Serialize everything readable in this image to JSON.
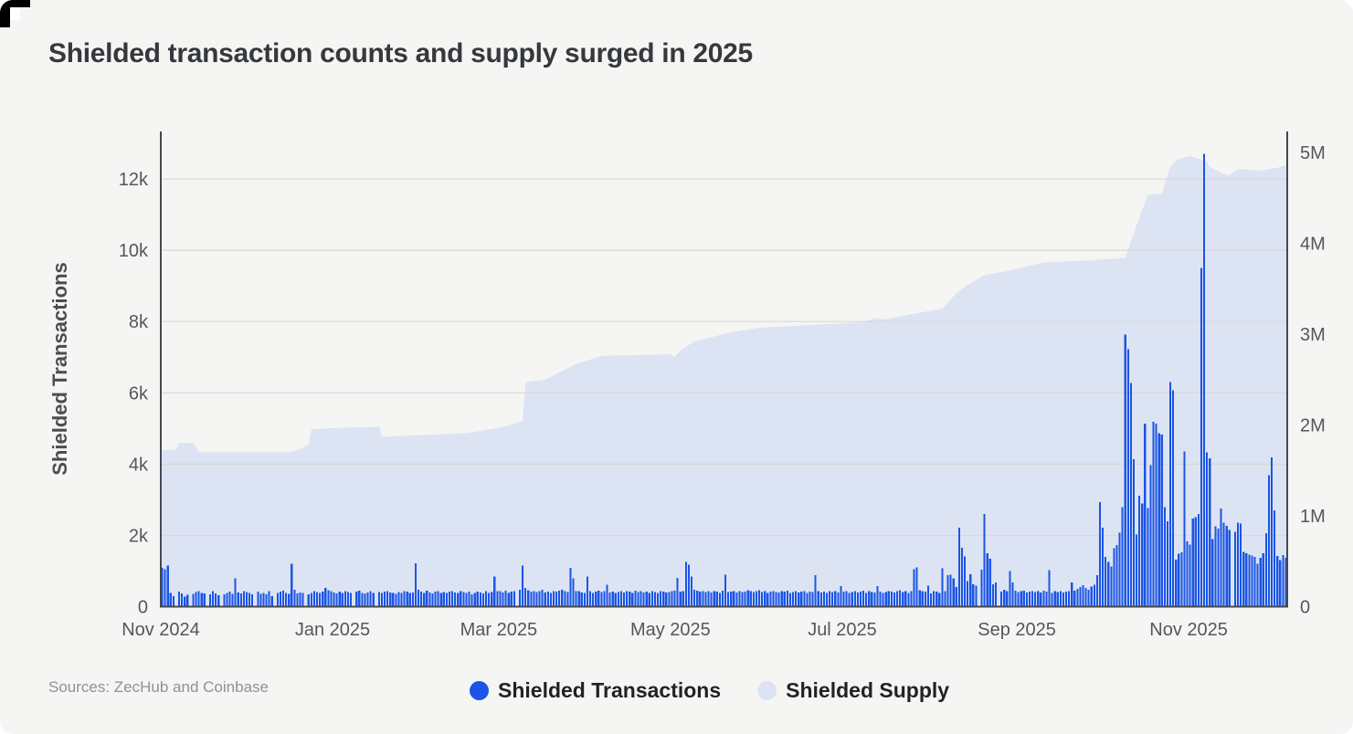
{
  "page": {
    "background": "#f5f5f4",
    "corner_mark_color": "#000000"
  },
  "title": "Shielded transaction counts and supply surged in 2025",
  "source_note": "Sources: ZecHub and Coinbase",
  "legend": {
    "items": [
      {
        "label": "Shielded Transactions",
        "color": "#1b55e6"
      },
      {
        "label": "Shielded Supply",
        "color": "#dce3f3"
      }
    ]
  },
  "chart_data": {
    "type": "bar",
    "subtype": "daily bars (left axis) + supply area (right axis), dual y-axis",
    "title": "Shielded transaction counts and supply surged in 2025",
    "grid": "horizontal lines at 2k steps of left axis",
    "colors": {
      "bars": "#1b55e6",
      "area": "#dce3f3",
      "gridline": "#d8d8d6",
      "spine": "#45484c",
      "tick_text": "#54575c"
    },
    "left_axis": {
      "title": "Shielded Transactions",
      "max": 13333,
      "ticks": [
        {
          "v": 0,
          "label": "0"
        },
        {
          "v": 2000,
          "label": "2k"
        },
        {
          "v": 4000,
          "label": "4k"
        },
        {
          "v": 6000,
          "label": "6k"
        },
        {
          "v": 8000,
          "label": "8k"
        },
        {
          "v": 10000,
          "label": "10k"
        },
        {
          "v": 12000,
          "label": "12k"
        }
      ]
    },
    "right_axis": {
      "title": "Shielded Supply",
      "max": 5231000,
      "ticks": [
        {
          "v": 0,
          "label": "0"
        },
        {
          "v": 1000000,
          "label": "1M"
        },
        {
          "v": 2000000,
          "label": "2M"
        },
        {
          "v": 3000000,
          "label": "3M"
        },
        {
          "v": 4000000,
          "label": "4M"
        },
        {
          "v": 5000000,
          "label": "5M"
        }
      ]
    },
    "x_axis": {
      "n_days": 400,
      "start_label": "Nov 2024",
      "ticks": [
        {
          "day": 0,
          "label": "Nov 2024"
        },
        {
          "day": 61,
          "label": "Jan 2025"
        },
        {
          "day": 120,
          "label": "Mar 2025"
        },
        {
          "day": 181,
          "label": "May 2025"
        },
        {
          "day": 242,
          "label": "Jul 2025"
        },
        {
          "day": 304,
          "label": "Sep 2025"
        },
        {
          "day": 365,
          "label": "Nov 2025"
        }
      ]
    },
    "series": [
      {
        "name": "Shielded Transactions",
        "type": "bar",
        "axis": "left",
        "color": "#1b55e6",
        "values": [
          1090,
          1050,
          1150,
          380,
          300,
          0,
          420,
          370,
          280,
          330,
          0,
          360,
          410,
          440,
          390,
          370,
          0,
          340,
          430,
          370,
          320,
          0,
          350,
          390,
          420,
          360,
          790,
          400,
          370,
          430,
          410,
          380,
          340,
          0,
          420,
          360,
          390,
          350,
          440,
          300,
          0,
          380,
          420,
          450,
          390,
          360,
          1210,
          470,
          370,
          400,
          380,
          0,
          350,
          390,
          440,
          410,
          380,
          420,
          520,
          460,
          430,
          400,
          370,
          420,
          390,
          440,
          410,
          380,
          0,
          420,
          450,
          390,
          370,
          400,
          430,
          380,
          0,
          410,
          390,
          420,
          440,
          400,
          380,
          360,
          410,
          390,
          430,
          420,
          380,
          400,
          1220,
          480,
          420,
          390,
          450,
          400,
          370,
          420,
          440,
          390,
          410,
          380,
          420,
          430,
          400,
          390,
          440,
          410,
          380,
          420,
          350,
          380,
          420,
          400,
          370,
          430,
          390,
          410,
          840,
          430,
          430,
          400,
          450,
          390,
          420,
          440,
          0,
          480,
          1150,
          530,
          460,
          420,
          440,
          410,
          430,
          470,
          400,
          420,
          390,
          440,
          420,
          450,
          480,
          430,
          410,
          1090,
          790,
          440,
          430,
          400,
          380,
          840,
          430,
          390,
          420,
          450,
          410,
          430,
          620,
          400,
          420,
          380,
          410,
          440,
          400,
          430,
          420,
          390,
          450,
          410,
          430,
          400,
          420,
          390,
          440,
          410,
          380,
          430,
          420,
          400,
          410,
          430,
          450,
          810,
          420,
          440,
          1260,
          1180,
          840,
          480,
          450,
          420,
          430,
          410,
          440,
          400,
          430,
          420,
          390,
          450,
          900,
          410,
          420,
          440,
          400,
          430,
          410,
          420,
          460,
          430,
          410,
          430,
          460,
          410,
          430,
          390,
          420,
          440,
          410,
          400,
          430,
          420,
          450,
          390,
          410,
          430,
          400,
          420,
          440,
          390,
          420,
          410,
          880,
          430,
          400,
          420,
          390,
          440,
          410,
          430,
          400,
          580,
          420,
          430,
          390,
          410,
          440,
          400,
          420,
          450,
          390,
          430,
          410,
          400,
          580,
          420,
          390,
          410,
          430,
          420,
          400,
          430,
          460,
          410,
          430,
          390,
          440,
          1050,
          1100,
          460,
          430,
          420,
          590,
          370,
          440,
          420,
          390,
          1080,
          430,
          890,
          900,
          800,
          550,
          2210,
          1650,
          1410,
          720,
          910,
          630,
          590,
          0,
          1040,
          2600,
          1500,
          1340,
          630,
          680,
          0,
          420,
          470,
          440,
          1000,
          680,
          450,
          410,
          430,
          450,
          400,
          420,
          440,
          410,
          430,
          400,
          450,
          420,
          1020,
          390,
          430,
          410,
          440,
          400,
          420,
          430,
          680,
          450,
          500,
          550,
          600,
          520,
          480,
          560,
          610,
          880,
          2930,
          2220,
          1400,
          1260,
          1130,
          1640,
          1730,
          2070,
          2790,
          7630,
          7220,
          6270,
          4140,
          2030,
          3110,
          2900,
          5140,
          2770,
          3970,
          5190,
          5140,
          4870,
          4830,
          2790,
          2400,
          6300,
          6070,
          1320,
          1490,
          1530,
          4360,
          1830,
          1740,
          2470,
          2510,
          2600,
          9500,
          12700,
          4330,
          4160,
          1890,
          2260,
          2190,
          2750,
          2360,
          2270,
          2150,
          0,
          2100,
          2360,
          2330,
          1540,
          1500,
          1460,
          1430,
          1400,
          1200,
          1370,
          1500,
          2060,
          3690,
          4190,
          2700,
          1420,
          1300,
          1450,
          1370
        ]
      },
      {
        "name": "Shielded Supply",
        "type": "area",
        "axis": "right",
        "color": "#dce3f3",
        "unit": "millions",
        "breakpoints_day_valueM": [
          [
            0,
            1.72
          ],
          [
            5,
            1.73
          ],
          [
            6,
            1.8
          ],
          [
            11,
            1.8
          ],
          [
            13,
            1.7
          ],
          [
            46,
            1.7
          ],
          [
            52,
            1.78
          ],
          [
            53,
            1.95
          ],
          [
            56,
            1.96
          ],
          [
            77,
            1.98
          ],
          [
            78,
            1.87
          ],
          [
            108,
            1.91
          ],
          [
            120,
            1.97
          ],
          [
            128,
            2.04
          ],
          [
            129,
            2.47
          ],
          [
            136,
            2.5
          ],
          [
            147,
            2.67
          ],
          [
            156,
            2.76
          ],
          [
            170,
            2.77
          ],
          [
            180,
            2.78
          ],
          [
            182,
            2.75
          ],
          [
            184,
            2.82
          ],
          [
            189,
            2.92
          ],
          [
            202,
            3.02
          ],
          [
            212,
            3.07
          ],
          [
            248,
            3.13
          ],
          [
            254,
            3.18
          ],
          [
            256,
            3.16
          ],
          [
            268,
            3.23
          ],
          [
            277,
            3.28
          ],
          [
            282,
            3.45
          ],
          [
            286,
            3.54
          ],
          [
            292,
            3.65
          ],
          [
            301,
            3.7
          ],
          [
            313,
            3.79
          ],
          [
            329,
            3.81
          ],
          [
            342,
            3.84
          ],
          [
            346,
            4.2
          ],
          [
            350,
            4.53
          ],
          [
            355,
            4.55
          ],
          [
            357,
            4.75
          ],
          [
            358,
            4.85
          ],
          [
            361,
            4.93
          ],
          [
            365,
            4.96
          ],
          [
            371,
            4.9
          ],
          [
            372,
            4.84
          ],
          [
            377,
            4.76
          ],
          [
            379,
            4.75
          ],
          [
            382,
            4.82
          ],
          [
            390,
            4.8
          ],
          [
            396,
            4.83
          ],
          [
            399,
            4.86
          ]
        ]
      }
    ]
  }
}
